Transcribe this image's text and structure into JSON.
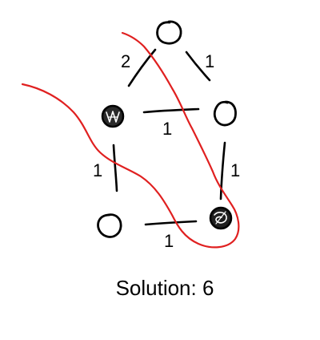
{
  "graph": {
    "nodes": [
      {
        "id": "top",
        "state": "empty"
      },
      {
        "id": "mid-left",
        "state": "filled"
      },
      {
        "id": "mid-right",
        "state": "empty"
      },
      {
        "id": "bottom-left",
        "state": "empty"
      },
      {
        "id": "bottom-right",
        "state": "filled"
      }
    ],
    "edges": [
      {
        "id": "top-midleft",
        "from": "top",
        "to": "mid-left",
        "weight": "2",
        "cut": true
      },
      {
        "id": "top-midright",
        "from": "top",
        "to": "mid-right",
        "weight": "1",
        "cut": false
      },
      {
        "id": "midleft-midright",
        "from": "mid-left",
        "to": "mid-right",
        "weight": "1",
        "cut": true
      },
      {
        "id": "midleft-bottomleft",
        "from": "mid-left",
        "to": "bottom-left",
        "weight": "1",
        "cut": true
      },
      {
        "id": "midright-bottomright",
        "from": "mid-right",
        "to": "bottom-right",
        "weight": "1",
        "cut": true
      },
      {
        "id": "bottomleft-bottomright",
        "from": "bottom-left",
        "to": "bottom-right",
        "weight": "1",
        "cut": true
      }
    ]
  },
  "colors": {
    "ink": "#000000",
    "cut_curve": "#e02020"
  },
  "solution": {
    "text": "Solution: 6"
  }
}
